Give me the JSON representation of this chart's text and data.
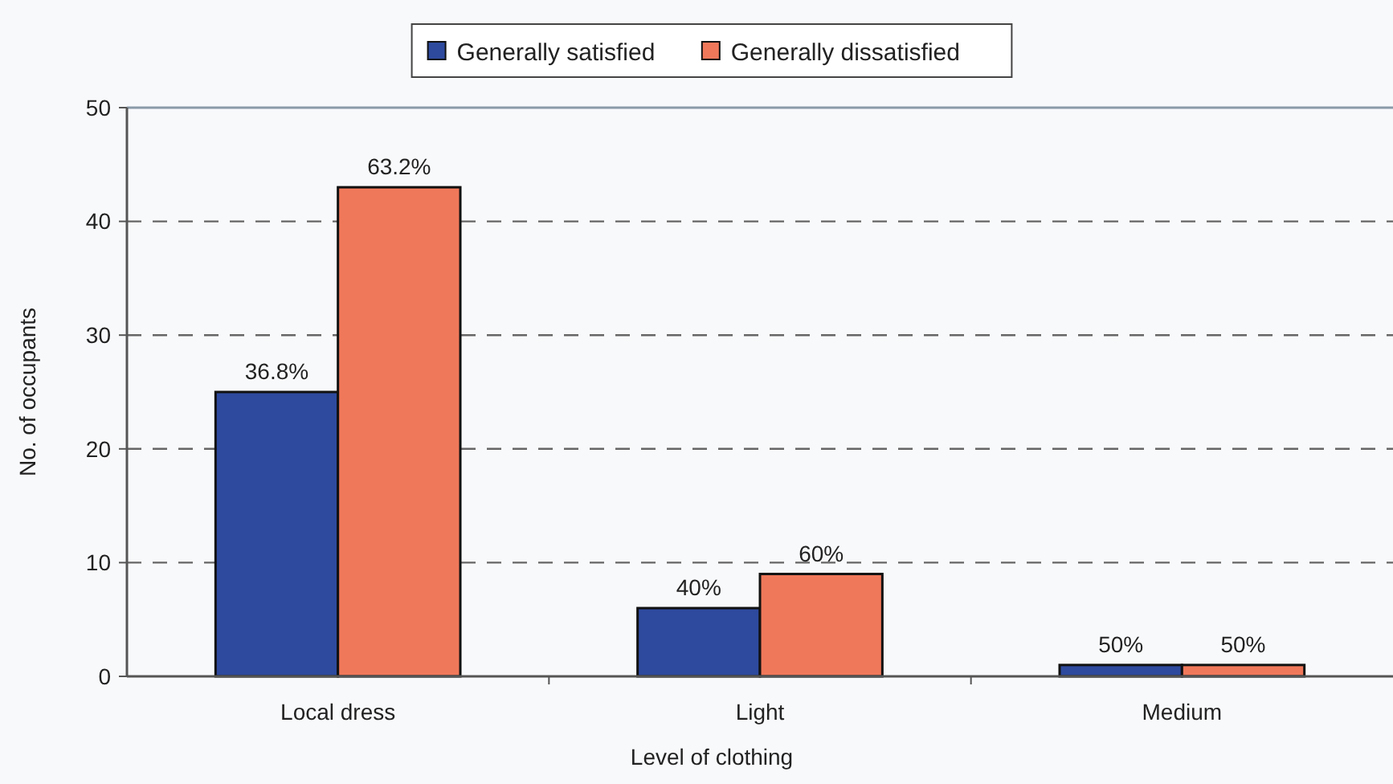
{
  "chart_data": {
    "type": "bar",
    "xlabel": "Level of clothing",
    "ylabel": "No. of occupants",
    "categories": [
      "Local dress",
      "Light",
      "Medium"
    ],
    "series": [
      {
        "name": "Generally satisfied",
        "color": "#2e4a9e",
        "values": [
          25,
          6,
          1
        ]
      },
      {
        "name": "Generally dissatisfied",
        "color": "#f0785a",
        "values": [
          43,
          9,
          1
        ]
      }
    ],
    "annotations": [
      {
        "text": "36.8%",
        "x": "Local dress",
        "y": 25
      },
      {
        "text": "63.2%",
        "x": "Local dress",
        "y": 43
      },
      {
        "text": "40%",
        "x": "Light",
        "y": 6
      },
      {
        "text": "60%",
        "x": "Light",
        "y": 9
      },
      {
        "text": "50%",
        "x": "Medium",
        "y": 1
      },
      {
        "text": "50%",
        "x": "Medium",
        "y": 1
      }
    ],
    "ylim": [
      0,
      50
    ],
    "yticks": [
      0,
      10,
      20,
      30,
      40,
      50
    ],
    "grid": "y",
    "legend": "top"
  }
}
